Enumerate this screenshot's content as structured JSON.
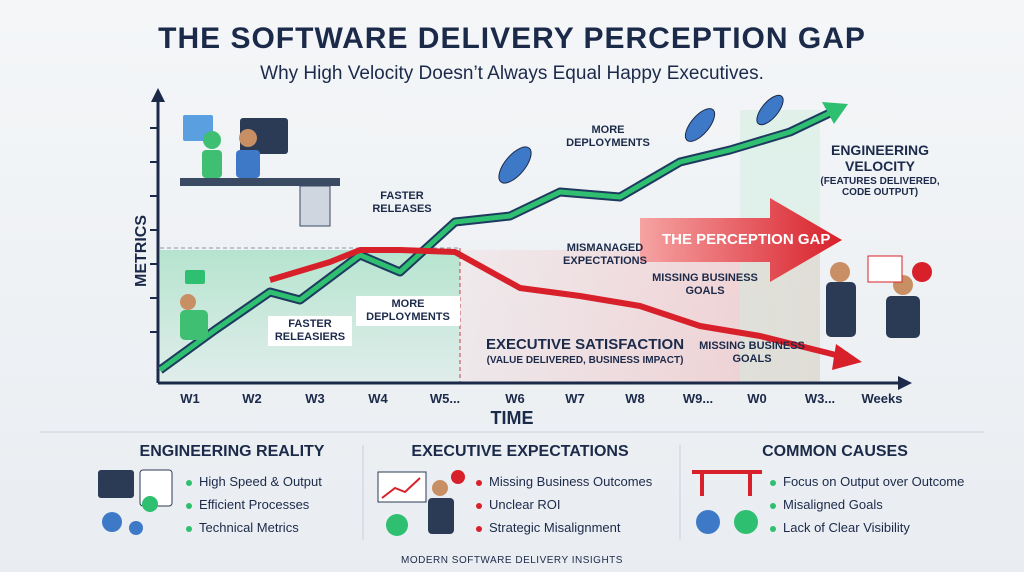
{
  "header": {
    "title": "THE SOFTWARE DELIVERY PERCEPTION GAP",
    "subtitle": "Why High Velocity Doesn’t Always Equal Happy Executives."
  },
  "diagram": {
    "y_axis_label": "METRICS",
    "x_axis_label": "TIME",
    "x_labels": [
      "W1",
      "W2",
      "W3",
      "W4",
      "W5...",
      "W6",
      "W7",
      "W8",
      "W9...",
      "W0",
      "W3...",
      "Weeks"
    ],
    "annotations": [
      "FASTER RELEASES",
      "MORE DEPLOYMENTS",
      "FASTER RELEASIERS",
      "MORE DEPLOYMENTS",
      "MISMANAGED EXPECTATIONS",
      "MISSING BUSINESS GOALS",
      "MISSING BUSINESS GOALS"
    ],
    "gap_label": "THE PERCEPTION GAP",
    "engineering": {
      "title": "ENGINEERING VELOCITY",
      "detail": "(FEATURES DELIVERED, CODE OUTPUT)"
    },
    "executive": {
      "title": "EXECUTIVE SATISFACTION",
      "detail": "(VALUE DELIVERED, BUSINESS IMPACT)"
    }
  },
  "panels": [
    {
      "title": "ENGINEERING REALITY",
      "items": [
        "High Speed & Output",
        "Efficient Processes",
        "Technical Metrics"
      ]
    },
    {
      "title": "EXECUTIVE EXPECTATIONS",
      "items": [
        "Missing Business Outcomes",
        "Unclear ROI",
        "Strategic Misalignment"
      ]
    },
    {
      "title": "COMMON CAUSES",
      "items": [
        "Focus on Output over Outcome",
        "Misaligned Goals",
        "Lack of Clear Visibility"
      ]
    }
  ],
  "footer": "MODERN SOFTWARE DELIVERY INSIGHTS"
}
